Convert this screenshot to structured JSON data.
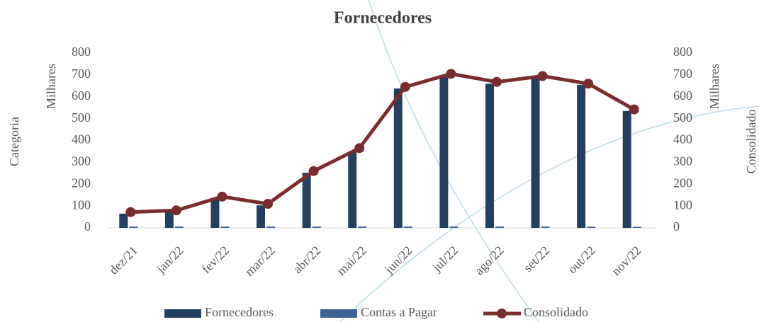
{
  "chart_data": {
    "type": "bar_line",
    "title": "Fornecedores",
    "y_axis_title": "Categoria",
    "y_units": "Milhares",
    "y2_axis_title": "Consolidado",
    "y2_units": "Milhares",
    "categories": [
      "dez/21",
      "jan/22",
      "fev/22",
      "mar/22",
      "abr/22",
      "mai/22",
      "jun/22",
      "jul/22",
      "ago/22",
      "set/22",
      "out/22",
      "nov/22"
    ],
    "series": [
      {
        "name": "Fornecedores",
        "type": "bar",
        "color": "#243f60",
        "values": [
          65,
          78,
          130,
          103,
          252,
          350,
          638,
          690,
          660,
          685,
          655,
          535
        ]
      },
      {
        "name": "Contas a Pagar",
        "type": "bar",
        "color": "#3e6396",
        "values": [
          6,
          6,
          6,
          6,
          6,
          6,
          6,
          6,
          6,
          6,
          5,
          5
        ]
      },
      {
        "name": "Consolidado",
        "type": "line",
        "axis": "y2",
        "color": "#7b2c2e",
        "values": [
          72,
          80,
          143,
          110,
          260,
          365,
          645,
          705,
          668,
          695,
          660,
          542
        ]
      }
    ],
    "ylim": [
      0,
      800
    ],
    "yticks": [
      0,
      100,
      200,
      300,
      400,
      500,
      600,
      700,
      800
    ],
    "y2lim": [
      0,
      800
    ],
    "y2ticks": [
      0,
      100,
      200,
      300,
      400,
      500,
      600,
      700,
      800
    ],
    "legend": "bottom"
  }
}
